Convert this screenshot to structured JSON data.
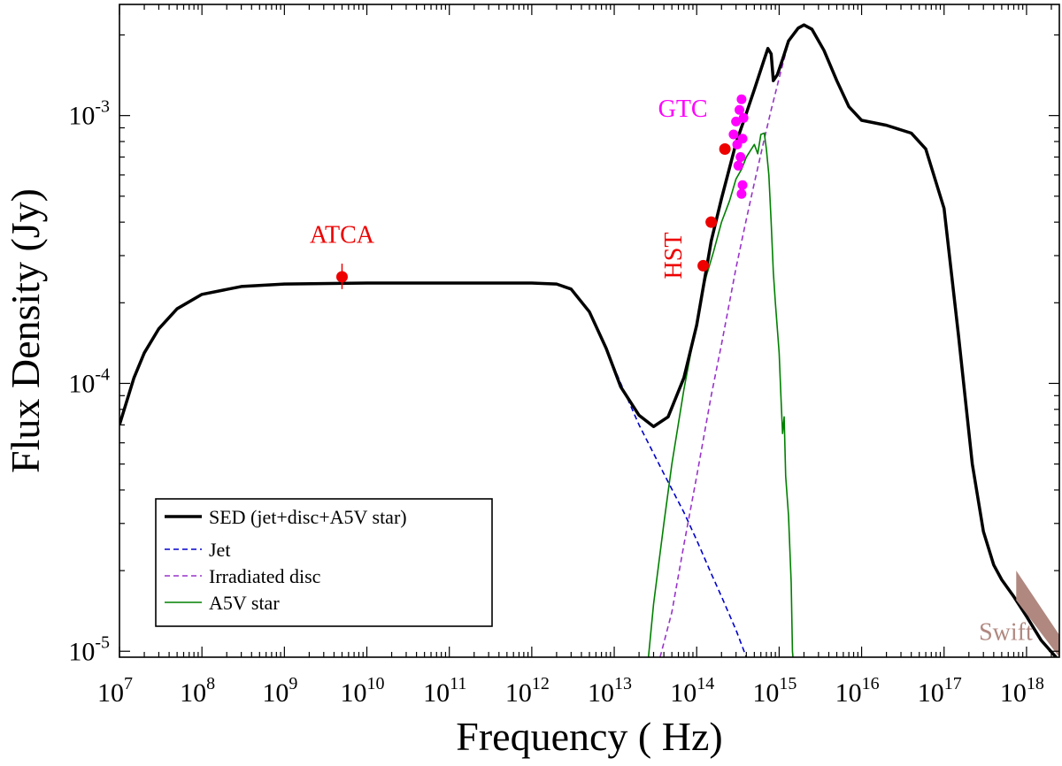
{
  "chart_data": {
    "type": "line",
    "title": "",
    "xlabel": "Frequency ( Hz)",
    "ylabel": "Flux Density (Jy)",
    "x_scale": "log",
    "y_scale": "log",
    "xlim": [
      10000000.0,
      2.5e+18
    ],
    "ylim": [
      9.5e-06,
      0.0026
    ],
    "x_ticks": [
      {
        "base": "10",
        "exp": "7",
        "value": 10000000.0
      },
      {
        "base": "10",
        "exp": "8",
        "value": 100000000.0
      },
      {
        "base": "10",
        "exp": "9",
        "value": 1000000000.0
      },
      {
        "base": "10",
        "exp": "10",
        "value": 10000000000.0
      },
      {
        "base": "10",
        "exp": "11",
        "value": 100000000000.0
      },
      {
        "base": "10",
        "exp": "12",
        "value": 1000000000000.0
      },
      {
        "base": "10",
        "exp": "13",
        "value": 10000000000000.0
      },
      {
        "base": "10",
        "exp": "14",
        "value": 100000000000000.0
      },
      {
        "base": "10",
        "exp": "15",
        "value": 1000000000000000.0
      },
      {
        "base": "10",
        "exp": "16",
        "value": 1e+16
      },
      {
        "base": "10",
        "exp": "17",
        "value": 1e+17
      },
      {
        "base": "10",
        "exp": "18",
        "value": 1e+18
      }
    ],
    "y_ticks": [
      {
        "base": "10",
        "exp": "-5",
        "value": 1e-05
      },
      {
        "base": "10",
        "exp": "-4",
        "value": 0.0001
      },
      {
        "base": "10",
        "exp": "-3",
        "value": 0.001
      }
    ],
    "legend": {
      "position": "bottom-left",
      "entries": [
        {
          "label": "SED (jet+disc+A5V star)",
          "color": "#000000",
          "style": "solid-thick"
        },
        {
          "label": "Jet",
          "color": "#0000cc",
          "style": "dashed"
        },
        {
          "label": "Irradiated disc",
          "color": "#9933cc",
          "style": "dashed"
        },
        {
          "label": "A5V star",
          "color": "#008000",
          "style": "solid"
        }
      ]
    },
    "series": [
      {
        "name": "SED (jet+disc+A5V star)",
        "color": "#000000",
        "dash": "solid",
        "width": 3.5,
        "points": [
          [
            10000000.0,
            7e-05
          ],
          [
            15000000.0,
            0.000105
          ],
          [
            20000000.0,
            0.00013
          ],
          [
            30000000.0,
            0.00016
          ],
          [
            50000000.0,
            0.00019
          ],
          [
            100000000.0,
            0.000215
          ],
          [
            300000000.0,
            0.00023
          ],
          [
            1000000000.0,
            0.000235
          ],
          [
            10000000000.0,
            0.000237
          ],
          [
            100000000000.0,
            0.000237
          ],
          [
            1000000000000.0,
            0.000237
          ],
          [
            2000000000000.0,
            0.000235
          ],
          [
            3000000000000.0,
            0.000225
          ],
          [
            5000000000000.0,
            0.000185
          ],
          [
            8000000000000.0,
            0.000135
          ],
          [
            12000000000000.0,
            9.7e-05
          ],
          [
            20000000000000.0,
            7.6e-05
          ],
          [
            30000000000000.0,
            6.9e-05
          ],
          [
            45000000000000.0,
            7.5e-05
          ],
          [
            70000000000000.0,
            0.000105
          ],
          [
            100000000000000.0,
            0.000165
          ],
          [
            150000000000000.0,
            0.00034
          ],
          [
            200000000000000.0,
            0.00049
          ],
          [
            300000000000000.0,
            0.00079
          ],
          [
            400000000000000.0,
            0.00102
          ],
          [
            500000000000000.0,
            0.00125
          ],
          [
            650000000000000.0,
            0.0016
          ],
          [
            730000000000000.0,
            0.00178
          ],
          [
            800000000000000.0,
            0.0017
          ],
          [
            850000000000000.0,
            0.00135
          ],
          [
            950000000000000.0,
            0.00142
          ],
          [
            1100000000000000.0,
            0.00162
          ],
          [
            1300000000000000.0,
            0.0019
          ],
          [
            1700000000000000.0,
            0.00212
          ],
          [
            2000000000000000.0,
            0.00218
          ],
          [
            2500000000000000.0,
            0.0021
          ],
          [
            3500000000000000.0,
            0.00175
          ],
          [
            5000000000000000.0,
            0.00135
          ],
          [
            7000000000000000.0,
            0.00108
          ],
          [
            1e+16,
            0.00096
          ],
          [
            2e+16,
            0.00092
          ],
          [
            4e+16,
            0.00086
          ],
          [
            6e+16,
            0.00075
          ],
          [
            1e+17,
            0.00045
          ],
          [
            1.5e+17,
            0.00015
          ],
          [
            2.2e+17,
            5e-05
          ],
          [
            3e+17,
            2.8e-05
          ],
          [
            4e+17,
            2.1e-05
          ],
          [
            5e+17,
            1.85e-05
          ],
          [
            7e+17,
            1.6e-05
          ],
          [
            1e+18,
            1.35e-05
          ],
          [
            1.5e+18,
            1.1e-05
          ],
          [
            2.5e+18,
            9.2e-06
          ]
        ]
      },
      {
        "name": "Jet",
        "color": "#0000cc",
        "dash": "dashed",
        "width": 1.6,
        "points": [
          [
            10000000.0,
            7e-05
          ],
          [
            15000000.0,
            0.000105
          ],
          [
            20000000.0,
            0.00013
          ],
          [
            30000000.0,
            0.00016
          ],
          [
            50000000.0,
            0.00019
          ],
          [
            100000000.0,
            0.000215
          ],
          [
            300000000.0,
            0.00023
          ],
          [
            1000000000.0,
            0.000235
          ],
          [
            10000000000.0,
            0.000237
          ],
          [
            100000000000.0,
            0.000237
          ],
          [
            1000000000000.0,
            0.000237
          ],
          [
            2000000000000.0,
            0.000235
          ],
          [
            3000000000000.0,
            0.000225
          ],
          [
            5000000000000.0,
            0.000185
          ],
          [
            8000000000000.0,
            0.000135
          ],
          [
            12000000000000.0,
            0.0001
          ],
          [
            20000000000000.0,
            7e-05
          ],
          [
            40000000000000.0,
            4.6e-05
          ],
          [
            70000000000000.0,
            3.3e-05
          ],
          [
            100000000000000.0,
            2.6e-05
          ],
          [
            150000000000000.0,
            1.95e-05
          ],
          [
            200000000000000.0,
            1.6e-05
          ],
          [
            300000000000000.0,
            1.2e-05
          ],
          [
            400000000000000.0,
            9.5e-06
          ]
        ]
      },
      {
        "name": "Irradiated disc",
        "color": "#9933cc",
        "dash": "dashed",
        "width": 1.6,
        "points": [
          [
            36000000000000.0,
            9.5e-06
          ],
          [
            50000000000000.0,
            1.4e-05
          ],
          [
            70000000000000.0,
            2.5e-05
          ],
          [
            100000000000000.0,
            4.5e-05
          ],
          [
            150000000000000.0,
            9e-05
          ],
          [
            200000000000000.0,
            0.00014
          ],
          [
            300000000000000.0,
            0.00027
          ],
          [
            400000000000000.0,
            0.00041
          ],
          [
            500000000000000.0,
            0.00056
          ],
          [
            650000000000000.0,
            0.0008
          ],
          [
            800000000000000.0,
            0.00105
          ],
          [
            1000000000000000.0,
            0.00138
          ],
          [
            1300000000000000.0,
            0.00188
          ],
          [
            1700000000000000.0,
            0.00212
          ],
          [
            2000000000000000.0,
            0.00218
          ],
          [
            2500000000000000.0,
            0.0021
          ],
          [
            3500000000000000.0,
            0.00175
          ],
          [
            5000000000000000.0,
            0.00135
          ],
          [
            7000000000000000.0,
            0.00108
          ],
          [
            1e+16,
            0.00096
          ],
          [
            2e+16,
            0.00092
          ],
          [
            4e+16,
            0.00086
          ],
          [
            6e+16,
            0.00075
          ],
          [
            1e+17,
            0.00045
          ],
          [
            1.5e+17,
            0.00015
          ],
          [
            2.2e+17,
            5e-05
          ],
          [
            3e+17,
            2.8e-05
          ],
          [
            4e+17,
            2.1e-05
          ],
          [
            5e+17,
            1.85e-05
          ],
          [
            7e+17,
            1.6e-05
          ],
          [
            1e+18,
            1.35e-05
          ],
          [
            1.5e+18,
            1.1e-05
          ],
          [
            2.5e+18,
            9.2e-06
          ]
        ]
      },
      {
        "name": "A5V star",
        "color": "#008000",
        "dash": "solid",
        "width": 1.6,
        "points": [
          [
            26000000000000.0,
            9.5e-06
          ],
          [
            30000000000000.0,
            1.5e-05
          ],
          [
            40000000000000.0,
            3e-05
          ],
          [
            50000000000000.0,
            5e-05
          ],
          [
            70000000000000.0,
            9.5e-05
          ],
          [
            100000000000000.0,
            0.00017
          ],
          [
            130000000000000.0,
            0.00025
          ],
          [
            160000000000000.0,
            0.00031
          ],
          [
            200000000000000.0,
            0.0004
          ],
          [
            250000000000000.0,
            0.00048
          ],
          [
            300000000000000.0,
            0.00058
          ],
          [
            350000000000000.0,
            0.00063
          ],
          [
            400000000000000.0,
            0.0007
          ],
          [
            500000000000000.0,
            0.00078
          ],
          [
            550000000000000.0,
            0.00072
          ],
          [
            600000000000000.0,
            0.00085
          ],
          [
            660000000000000.0,
            0.00086
          ],
          [
            700000000000000.0,
            0.00075
          ],
          [
            750000000000000.0,
            0.0006
          ],
          [
            800000000000000.0,
            0.0004
          ],
          [
            850000000000000.0,
            0.00026
          ],
          [
            900000000000000.0,
            0.0002
          ],
          [
            1000000000000000.0,
            0.00013
          ],
          [
            1050000000000000.0,
            9e-05
          ],
          [
            1100000000000000.0,
            6.5e-05
          ],
          [
            1150000000000000.0,
            7.5e-05
          ],
          [
            1200000000000000.0,
            4.5e-05
          ],
          [
            1300000000000000.0,
            3.2e-05
          ],
          [
            1400000000000000.0,
            1.8e-05
          ],
          [
            1450000000000000.0,
            1e-05
          ],
          [
            1470000000000000.0,
            9.5e-06
          ]
        ]
      }
    ],
    "data_points": [
      {
        "group": "ATCA",
        "color": "#ee0000",
        "x": 5000000000.0,
        "y": 0.00025,
        "yerr": [
          0.000225,
          0.00028
        ]
      },
      {
        "group": "HST",
        "color": "#ee0000",
        "x": 220000000000000.0,
        "y": 0.00075
      },
      {
        "group": "HST",
        "color": "#ee0000",
        "x": 150000000000000.0,
        "y": 0.0004
      },
      {
        "group": "HST",
        "color": "#ee0000",
        "x": 120000000000000.0,
        "y": 0.000275
      },
      {
        "group": "GTC",
        "color": "#ff00ff",
        "x": 280000000000000.0,
        "y": 0.00085
      },
      {
        "group": "GTC",
        "color": "#ff00ff",
        "x": 300000000000000.0,
        "y": 0.00095
      },
      {
        "group": "GTC",
        "color": "#ff00ff",
        "x": 330000000000000.0,
        "y": 0.00105
      },
      {
        "group": "GTC",
        "color": "#ff00ff",
        "x": 350000000000000.0,
        "y": 0.00115
      },
      {
        "group": "GTC",
        "color": "#ff00ff",
        "x": 310000000000000.0,
        "y": 0.00078
      },
      {
        "group": "GTC",
        "color": "#ff00ff",
        "x": 340000000000000.0,
        "y": 0.0007
      },
      {
        "group": "GTC",
        "color": "#ff00ff",
        "x": 360000000000000.0,
        "y": 0.00082
      },
      {
        "group": "GTC",
        "color": "#ff00ff",
        "x": 370000000000000.0,
        "y": 0.00098
      },
      {
        "group": "GTC",
        "color": "#ff00ff",
        "x": 320000000000000.0,
        "y": 0.00065
      },
      {
        "group": "GTC",
        "color": "#ff00ff",
        "x": 360000000000000.0,
        "y": 0.00055
      },
      {
        "group": "GTC",
        "color": "#ff00ff",
        "x": 350000000000000.0,
        "y": 0.00051
      }
    ],
    "swift_band": {
      "label": "Swift",
      "color": "#b08880",
      "polygon": [
        [
          7.5e+17,
          2e-05
        ],
        [
          2.5e+18,
          1.15e-05
        ],
        [
          2.5e+18,
          9.5e-06
        ],
        [
          7.5e+17,
          1.55e-05
        ]
      ]
    },
    "annotations": [
      {
        "text": "ATCA",
        "color": "#ee0000",
        "x": 5000000000.0,
        "y": 0.000335,
        "rotate": 0
      },
      {
        "text": "HST",
        "color": "#ee0000",
        "x": 65000000000000.0,
        "y": 0.0003,
        "rotate": -90
      },
      {
        "text": "GTC",
        "color": "#ff00ff",
        "x": 68000000000000.0,
        "y": 0.00099,
        "rotate": 0
      },
      {
        "text": "Swift",
        "color": "#b08880",
        "x": 5.6e+17,
        "y": 1.1e-05,
        "rotate": 0
      }
    ]
  }
}
